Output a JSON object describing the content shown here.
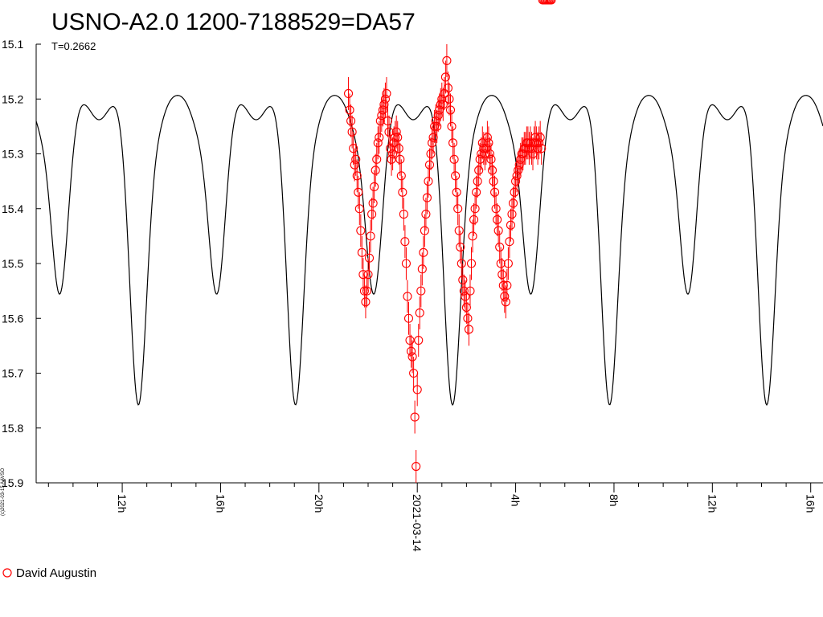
{
  "title": "USNO-A2.0 1200-7188529=DA57",
  "subtitle": "T=0.2662",
  "credit": "(c)2021-03-15 AAVSO",
  "legend": {
    "observer": "David Augustin",
    "marker_color": "#ff0000"
  },
  "chart_data": {
    "type": "scatter",
    "title": "USNO-A2.0 1200-7188529=DA57",
    "subtitle": "T=0.2662",
    "ylim": [
      15.9,
      15.1
    ],
    "y_inverted": true,
    "ytick_labels": [
      "15.1",
      "15.2",
      "15.3",
      "15.4",
      "15.5",
      "15.6",
      "15.7",
      "15.8",
      "15.9"
    ],
    "xlim_hours": [
      -15.5,
      16.5
    ],
    "xtick_labels": [
      "12h",
      "16h",
      "20h",
      "2021-03-14",
      "4h",
      "8h",
      "12h",
      "16h"
    ],
    "xtick_hours": [
      -12,
      -8,
      -4,
      0,
      4,
      8,
      12,
      16
    ],
    "model_curve": {
      "period_hours": 6.388,
      "primary_minimum_mag": 15.755,
      "secondary_minimum_mag": 15.553,
      "maxima_mag": [
        15.19,
        15.243
      ],
      "primary_minimum_hours": 1.43,
      "color": "#000000"
    },
    "series": [
      {
        "name": "David Augustin",
        "color": "#ff0000",
        "marker": "open-circle",
        "hours": [
          -2.8,
          -2.75,
          -2.7,
          -2.65,
          -2.6,
          -2.55,
          -2.5,
          -2.45,
          -2.4,
          -2.35,
          -2.3,
          -2.25,
          -2.2,
          -2.15,
          -2.1,
          -2.05,
          -2.0,
          -1.95,
          -1.9,
          -1.85,
          -1.8,
          -1.75,
          -1.7,
          -1.65,
          -1.6,
          -1.55,
          -1.5,
          -1.45,
          -1.4,
          -1.35,
          -1.3,
          -1.25,
          -1.2,
          -1.15,
          -1.1,
          -1.05,
          -1.0,
          -0.95,
          -0.9,
          -0.85,
          -0.8,
          -0.75,
          -0.7,
          -0.65,
          -0.6,
          -0.55,
          -0.5,
          -0.45,
          -0.4,
          -0.35,
          -0.3,
          -0.25,
          -0.2,
          -0.15,
          -0.1,
          -0.05,
          0.0,
          0.05,
          0.1,
          0.15,
          0.2,
          0.25,
          0.3,
          0.35,
          0.4,
          0.45,
          0.5,
          0.55,
          0.6,
          0.65,
          0.7,
          0.75,
          0.8,
          0.85,
          0.9,
          0.95,
          1.0,
          1.05,
          1.1,
          1.15,
          1.2,
          1.25,
          1.3,
          1.35,
          1.4,
          1.45,
          1.5,
          1.55,
          1.6,
          1.65,
          1.7,
          1.75,
          1.8,
          1.85,
          1.9,
          1.95,
          2.0,
          2.05,
          2.1,
          2.15,
          2.2,
          2.25,
          2.3,
          2.35,
          2.4,
          2.45,
          2.5,
          2.55,
          2.6,
          2.65,
          2.7,
          2.75,
          2.8,
          2.85,
          2.9,
          2.95,
          3.0,
          3.05,
          3.1,
          3.15,
          3.2,
          3.25,
          3.3,
          3.35,
          3.4,
          3.45,
          3.5,
          3.55,
          3.6,
          3.65,
          3.7,
          3.75,
          3.8,
          3.85,
          3.9,
          3.95,
          4.0,
          4.05,
          4.1,
          4.15,
          4.2,
          4.25,
          4.3,
          4.35,
          4.4,
          4.45,
          4.5,
          4.55,
          4.6,
          4.65,
          4.7,
          4.75,
          4.8,
          4.85,
          4.9,
          4.95,
          5.0,
          5.05,
          5.1,
          5.15,
          5.2,
          5.25,
          5.3,
          5.35,
          5.4,
          5.45
        ],
        "mag": [
          15.19,
          15.22,
          15.24,
          15.26,
          15.29,
          15.32,
          15.31,
          15.34,
          15.37,
          15.4,
          15.44,
          15.48,
          15.52,
          15.55,
          15.57,
          15.55,
          15.52,
          15.49,
          15.45,
          15.41,
          15.39,
          15.36,
          15.33,
          15.31,
          15.28,
          15.27,
          15.24,
          15.23,
          15.22,
          15.21,
          15.2,
          15.19,
          15.24,
          15.26,
          15.29,
          15.31,
          15.3,
          15.28,
          15.27,
          15.26,
          15.27,
          15.29,
          15.31,
          15.34,
          15.37,
          15.41,
          15.46,
          15.5,
          15.56,
          15.6,
          15.64,
          15.66,
          15.67,
          15.7,
          15.78,
          15.87,
          15.73,
          15.64,
          15.59,
          15.55,
          15.51,
          15.48,
          15.44,
          15.41,
          15.38,
          15.35,
          15.32,
          15.3,
          15.28,
          15.27,
          15.25,
          15.24,
          15.25,
          15.23,
          15.22,
          15.21,
          15.2,
          15.21,
          15.19,
          15.16,
          15.13,
          15.18,
          15.2,
          15.22,
          15.25,
          15.28,
          15.31,
          15.34,
          15.37,
          15.4,
          15.44,
          15.47,
          15.5,
          15.53,
          15.55,
          15.56,
          15.58,
          15.6,
          15.62,
          15.55,
          15.5,
          15.45,
          15.42,
          15.4,
          15.37,
          15.35,
          15.33,
          15.31,
          15.3,
          15.28,
          15.29,
          15.3,
          15.29,
          15.27,
          15.28,
          15.3,
          15.31,
          15.33,
          15.35,
          15.37,
          15.4,
          15.42,
          15.44,
          15.47,
          15.5,
          15.52,
          15.54,
          15.56,
          15.57,
          15.54,
          15.5,
          15.46,
          15.43,
          15.41,
          15.39,
          15.37,
          15.35,
          15.34,
          15.33,
          15.32,
          15.31,
          15.3,
          15.3,
          15.29,
          15.29,
          15.28,
          15.28,
          15.29,
          15.28,
          15.29,
          15.3,
          15.28,
          15.27,
          15.28,
          15.29,
          15.28,
          15.27,
          15.29
        ],
        "errorbar": 0.03
      }
    ]
  }
}
